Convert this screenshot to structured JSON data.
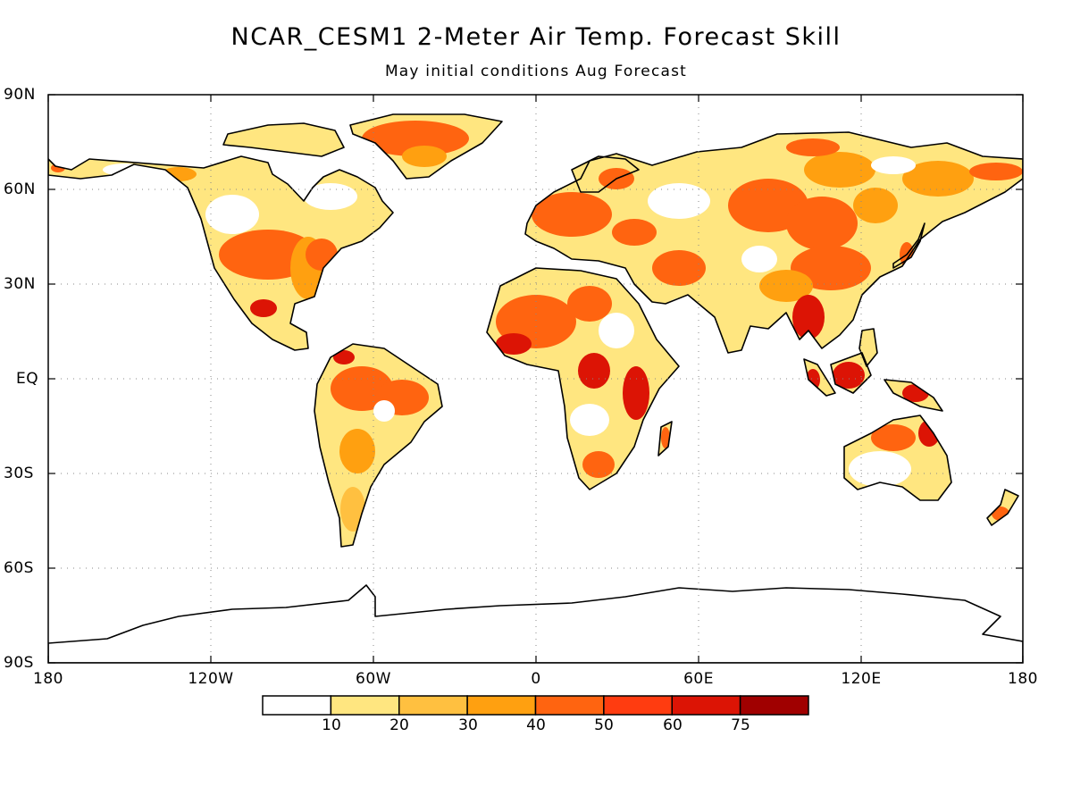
{
  "title": "NCAR_CESM1 2-Meter Air Temp. Forecast Skill",
  "subtitle": "May initial conditions  Aug Forecast",
  "lat_labels": [
    "90N",
    "60N",
    "30N",
    "EQ",
    "30S",
    "60S",
    "90S"
  ],
  "lon_labels": [
    "180",
    "120W",
    "60W",
    "0",
    "60E",
    "120E",
    "180"
  ],
  "colorbar": {
    "labels": [
      "10",
      "20",
      "30",
      "40",
      "50",
      "60",
      "75"
    ],
    "colors": [
      "#ffffff",
      "#ffe680",
      "#ffc040",
      "#ffa010",
      "#ff6410",
      "#ff3c10",
      "#dc1405",
      "#a00000"
    ]
  },
  "land_colors": {
    "bg": "#ffffff",
    "light": "#ffe680",
    "mid": "#ffc040",
    "orange": "#ffa010",
    "dark": "#ff6410",
    "red": "#dc1405"
  }
}
